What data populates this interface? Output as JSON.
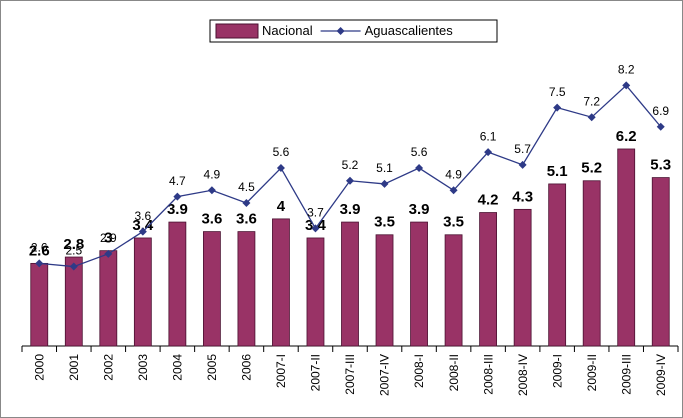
{
  "chart_data": {
    "type": "bar_line",
    "categories": [
      "2000",
      "2001",
      "2002",
      "2003",
      "2004",
      "2005",
      "2006",
      "2007-I",
      "2007-II",
      "2007-III",
      "2007-IV",
      "2008-I",
      "2008-II",
      "2008-III",
      "2008-IV",
      "2009-I",
      "2009-II",
      "2009-III",
      "2009-IV"
    ],
    "series": [
      {
        "name": "Nacional",
        "type": "bar",
        "color": "#993366",
        "values": [
          2.6,
          2.8,
          3,
          3.4,
          3.9,
          3.6,
          3.6,
          4,
          3.4,
          3.9,
          3.5,
          3.9,
          3.5,
          4.2,
          4.3,
          5.1,
          5.2,
          6.2,
          5.3
        ]
      },
      {
        "name": "Aguascalientes",
        "type": "line",
        "color": "#2e3a87",
        "values": [
          2.6,
          2.5,
          2.9,
          3.6,
          4.7,
          4.9,
          4.5,
          5.6,
          3.7,
          5.2,
          5.1,
          5.6,
          4.9,
          6.1,
          5.7,
          7.5,
          7.2,
          8.2,
          6.9
        ]
      }
    ],
    "ylim": [
      0,
      9
    ],
    "legend": "top"
  }
}
